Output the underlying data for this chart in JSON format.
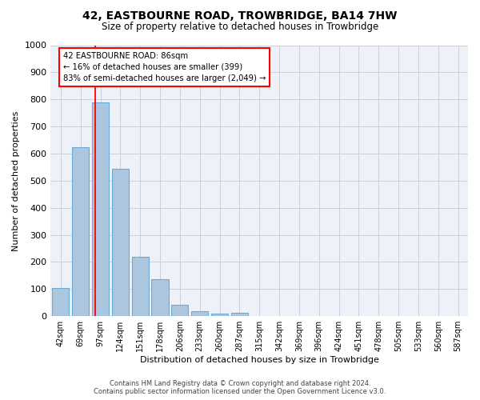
{
  "title": "42, EASTBOURNE ROAD, TROWBRIDGE, BA14 7HW",
  "subtitle": "Size of property relative to detached houses in Trowbridge",
  "xlabel": "Distribution of detached houses by size in Trowbridge",
  "ylabel": "Number of detached properties",
  "bar_color": "#adc6e0",
  "bar_edge_color": "#6aaad4",
  "categories": [
    "42sqm",
    "69sqm",
    "97sqm",
    "124sqm",
    "151sqm",
    "178sqm",
    "206sqm",
    "233sqm",
    "260sqm",
    "287sqm",
    "315sqm",
    "342sqm",
    "369sqm",
    "396sqm",
    "424sqm",
    "451sqm",
    "478sqm",
    "505sqm",
    "533sqm",
    "560sqm",
    "587sqm"
  ],
  "values": [
    105,
    625,
    790,
    545,
    220,
    135,
    42,
    17,
    10,
    12,
    0,
    0,
    0,
    0,
    0,
    0,
    0,
    0,
    0,
    0,
    0
  ],
  "ylim": [
    0,
    1000
  ],
  "yticks": [
    0,
    100,
    200,
    300,
    400,
    500,
    600,
    700,
    800,
    900,
    1000
  ],
  "redline_x": 1.72,
  "annotation_text": "42 EASTBOURNE ROAD: 86sqm\n← 16% of detached houses are smaller (399)\n83% of semi-detached houses are larger (2,049) →",
  "annotation_box_color": "white",
  "annotation_edge_color": "red",
  "footer_line1": "Contains HM Land Registry data © Crown copyright and database right 2024.",
  "footer_line2": "Contains public sector information licensed under the Open Government Licence v3.0.",
  "background_color": "#eef2f8",
  "grid_color": "#c8d0dc"
}
